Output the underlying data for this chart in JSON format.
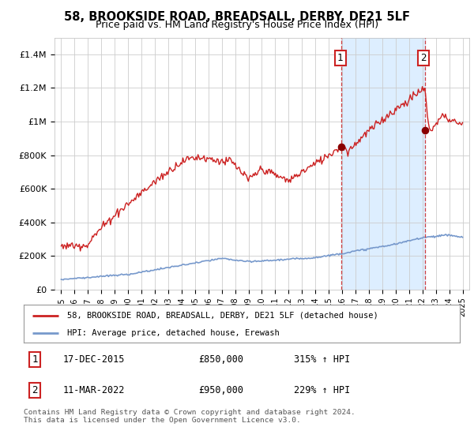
{
  "title": "58, BROOKSIDE ROAD, BREADSALL, DERBY, DE21 5LF",
  "subtitle": "Price paid vs. HM Land Registry's House Price Index (HPI)",
  "title_fontsize": 10.5,
  "subtitle_fontsize": 9,
  "background_color": "#ffffff",
  "grid_color": "#cccccc",
  "plot_bg_color": "#ffffff",
  "marker_shade_color": "#ddeeff",
  "red_line_color": "#cc2222",
  "blue_line_color": "#7799cc",
  "marker1_year": 2015.96,
  "marker2_year": 2022.19,
  "marker1_value": 850000,
  "marker2_value": 950000,
  "marker1_date_str": "17-DEC-2015",
  "marker2_date_str": "11-MAR-2022",
  "marker1_hpi": "315% ↑ HPI",
  "marker2_hpi": "229% ↑ HPI",
  "legend_label_red": "58, BROOKSIDE ROAD, BREADSALL, DERBY, DE21 5LF (detached house)",
  "legend_label_blue": "HPI: Average price, detached house, Erewash",
  "footnote": "Contains HM Land Registry data © Crown copyright and database right 2024.\nThis data is licensed under the Open Government Licence v3.0.",
  "ylim": [
    0,
    1500000
  ],
  "yticks": [
    0,
    200000,
    400000,
    600000,
    800000,
    1000000,
    1200000,
    1400000
  ],
  "ytick_labels": [
    "£0",
    "£200K",
    "£400K",
    "£600K",
    "£800K",
    "£1M",
    "£1.2M",
    "£1.4M"
  ],
  "xmin": 1994.5,
  "xmax": 2025.5
}
